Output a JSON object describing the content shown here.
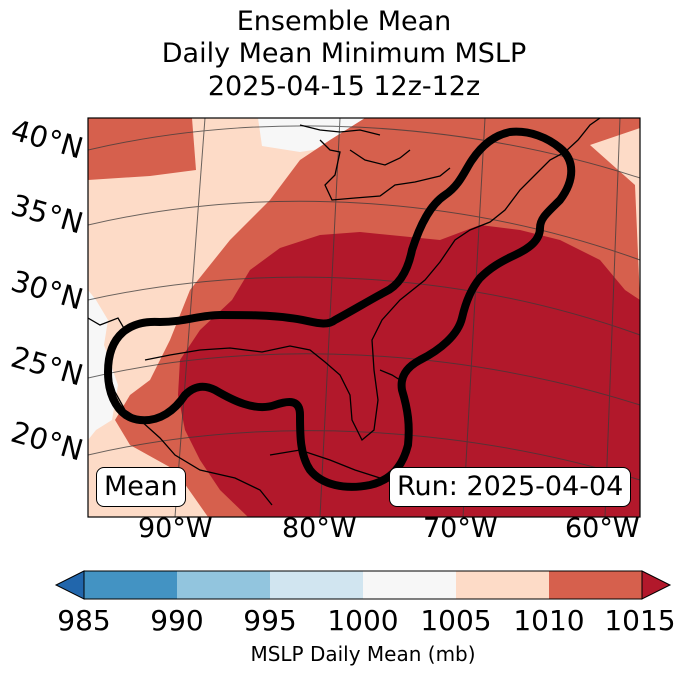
{
  "title": {
    "line1": "Ensemble Mean",
    "line2": "Daily Mean Minimum MSLP",
    "line3": "2025-04-15 12z-12z"
  },
  "map": {
    "latitude_labels": [
      "40°N",
      "35°N",
      "30°N",
      "25°N",
      "20°N"
    ],
    "longitude_labels": [
      "90°W",
      "80°W",
      "70°W",
      "60°W"
    ],
    "left_box_label": "Mean",
    "run_label": "Run: 2025-04-04",
    "fill_colors": {
      "c1000_1005": "#f7f7f7",
      "c1005_1010": "#fddbc7",
      "c1010_1015": "#d6604d",
      "c_gt_1015": "#b2182b"
    }
  },
  "colorbar": {
    "label": "MSLP Daily Mean (mb)",
    "ticks": [
      "985",
      "990",
      "995",
      "1000",
      "1005",
      "1010",
      "1015"
    ],
    "colors": [
      "#2166ac",
      "#4393c3",
      "#92c5de",
      "#d1e5f0",
      "#f7f7f7",
      "#fddbc7",
      "#d6604d",
      "#b2182b"
    ]
  }
}
